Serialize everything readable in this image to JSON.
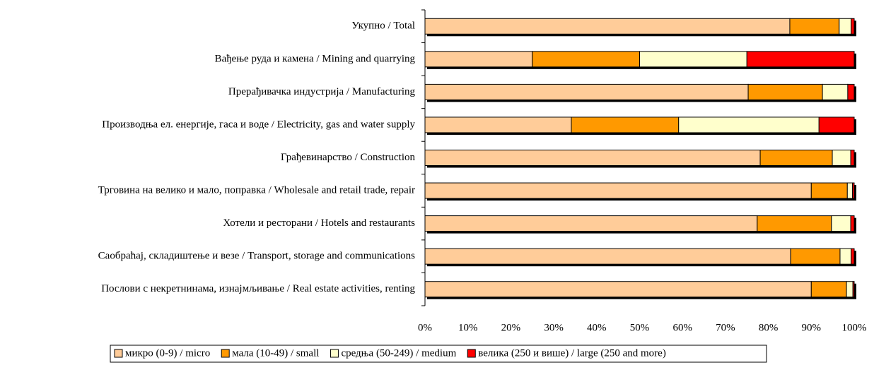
{
  "chart_data": {
    "type": "stacked-bar-horizontal",
    "categories": [
      "Укупно / Total",
      "Вађење руда и камена / Mining and quarrying",
      "Прерађивачка индустрија / Manufacturing",
      "Производња ел. енергије, гаса и воде / Electricity, gas and water supply",
      "Грађевинарство / Construction",
      "Трговина на велико и мало, поправка / Wholesale and retail trade, repair",
      "Хотели и ресторани / Hotels and restaurants",
      "Саобраћај, складиштење и везе / Transport, storage and communications",
      "Послови с некретнинама, изнајмљивање / Real estate activities, renting"
    ],
    "series": [
      {
        "name": "микро (0-9) / micro",
        "color": "#ffcc99",
        "values": [
          85,
          25,
          75.3,
          34.1,
          78.1,
          90,
          77.4,
          85.2,
          90
        ]
      },
      {
        "name": "мала (10-49) / small",
        "color": "#ff9900",
        "values": [
          11.5,
          25,
          17.3,
          25,
          16.8,
          8.4,
          17.3,
          11.5,
          8.2
        ]
      },
      {
        "name": "средња (50-249) / medium",
        "color": "#ffffcc",
        "values": [
          2.8,
          25,
          5.9,
          32.7,
          4.3,
          1.2,
          4.5,
          2.6,
          1.5
        ]
      },
      {
        "name": "велика (250 и више) / large (250 and more)",
        "color": "#ff0000",
        "values": [
          0.7,
          25,
          1.5,
          8.2,
          0.8,
          0.4,
          0.8,
          0.7,
          0.3
        ]
      }
    ],
    "xlim": [
      0,
      100
    ],
    "xticks": [
      {
        "value": 0,
        "label": "0%"
      },
      {
        "value": 10,
        "label": "10%"
      },
      {
        "value": 20,
        "label": "20%"
      },
      {
        "value": 30,
        "label": "30%"
      },
      {
        "value": 40,
        "label": "40%"
      },
      {
        "value": 50,
        "label": "50%"
      },
      {
        "value": 60,
        "label": "60%"
      },
      {
        "value": 70,
        "label": "70%"
      },
      {
        "value": 80,
        "label": "80%"
      },
      {
        "value": 90,
        "label": "90%"
      },
      {
        "value": 100,
        "label": "100%"
      }
    ],
    "legend": "bottom"
  }
}
